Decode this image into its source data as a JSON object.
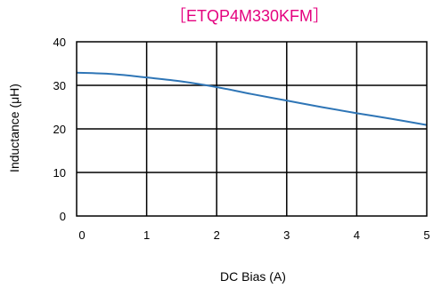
{
  "chart_data": {
    "type": "line",
    "title": "［ETQP4M330KFM］",
    "title_color": "#e4007f",
    "xlabel": "DC Bias (A)",
    "ylabel": "Inductance (μH)",
    "xlim": [
      0,
      5
    ],
    "ylim": [
      0,
      40
    ],
    "xticks": [
      "0",
      "1",
      "2",
      "3",
      "4",
      "5"
    ],
    "yticks": [
      "0",
      "10",
      "20",
      "30",
      "40"
    ],
    "grid": true,
    "line_color": "#2e75b6",
    "series": [
      {
        "x": [
          0,
          0.5,
          1.0,
          1.5,
          2.0,
          2.5,
          3.0,
          3.5,
          4.0,
          4.5,
          5.0
        ],
        "y": [
          32.9,
          32.6,
          31.8,
          30.9,
          29.6,
          28.0,
          26.5,
          25.0,
          23.6,
          22.3,
          20.9
        ]
      }
    ]
  }
}
